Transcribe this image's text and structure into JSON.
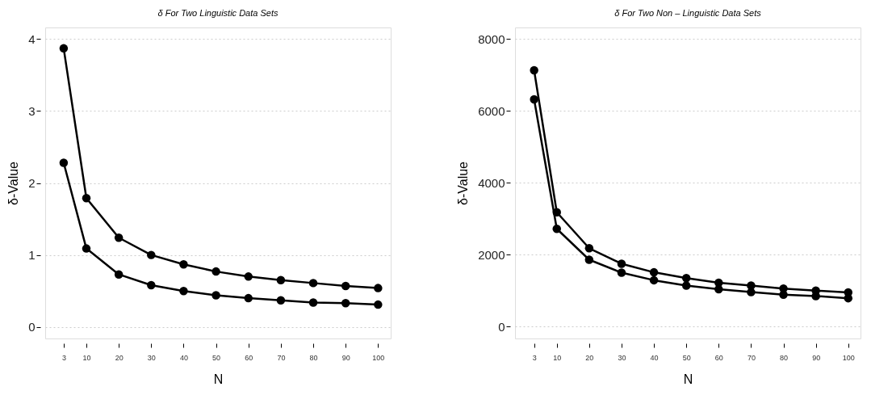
{
  "chart_data": [
    {
      "type": "line",
      "title": "δ For Two Linguistic Data Sets",
      "xlabel": "N",
      "ylabel": "δ-Value",
      "x": [
        3,
        10,
        20,
        30,
        40,
        50,
        60,
        70,
        80,
        90,
        100
      ],
      "series": [
        {
          "color": "#000000",
          "values": [
            3.87,
            1.79,
            1.24,
            1.0,
            0.87,
            0.77,
            0.7,
            0.65,
            0.61,
            0.57,
            0.54
          ]
        },
        {
          "color": "#000000",
          "values": [
            2.28,
            1.09,
            0.73,
            0.58,
            0.5,
            0.44,
            0.4,
            0.37,
            0.34,
            0.33,
            0.31
          ]
        }
      ],
      "xlim": [
        -2.7,
        103.9
      ],
      "xticks": [
        3,
        10,
        20,
        30,
        40,
        50,
        60,
        70,
        80,
        90,
        100
      ],
      "ylim": [
        -0.16,
        4.16
      ],
      "yticks": [
        0,
        1,
        2,
        3,
        4
      ],
      "grid": "y",
      "marker": "circle",
      "line_style": "solid"
    },
    {
      "type": "line",
      "title": "δ For Two Non – Linguistic Data Sets",
      "xlabel": "N",
      "ylabel": "δ-Value",
      "x": [
        3,
        10,
        20,
        30,
        40,
        50,
        60,
        70,
        80,
        90,
        100
      ],
      "series": [
        {
          "color": "#000000",
          "values": [
            7130,
            3180,
            2180,
            1750,
            1510,
            1350,
            1220,
            1140,
            1060,
            1000,
            950
          ]
        },
        {
          "color": "#000000",
          "values": [
            6320,
            2720,
            1860,
            1500,
            1290,
            1140,
            1040,
            960,
            890,
            850,
            790
          ]
        }
      ],
      "xlim": [
        -2.9,
        103.8
      ],
      "xticks": [
        3,
        10,
        20,
        30,
        40,
        50,
        60,
        70,
        80,
        90,
        100
      ],
      "ylim": [
        -330,
        8320
      ],
      "yticks": [
        0,
        2000,
        4000,
        6000,
        8000
      ],
      "grid": "y",
      "marker": "circle",
      "line_style": "solid"
    }
  ]
}
